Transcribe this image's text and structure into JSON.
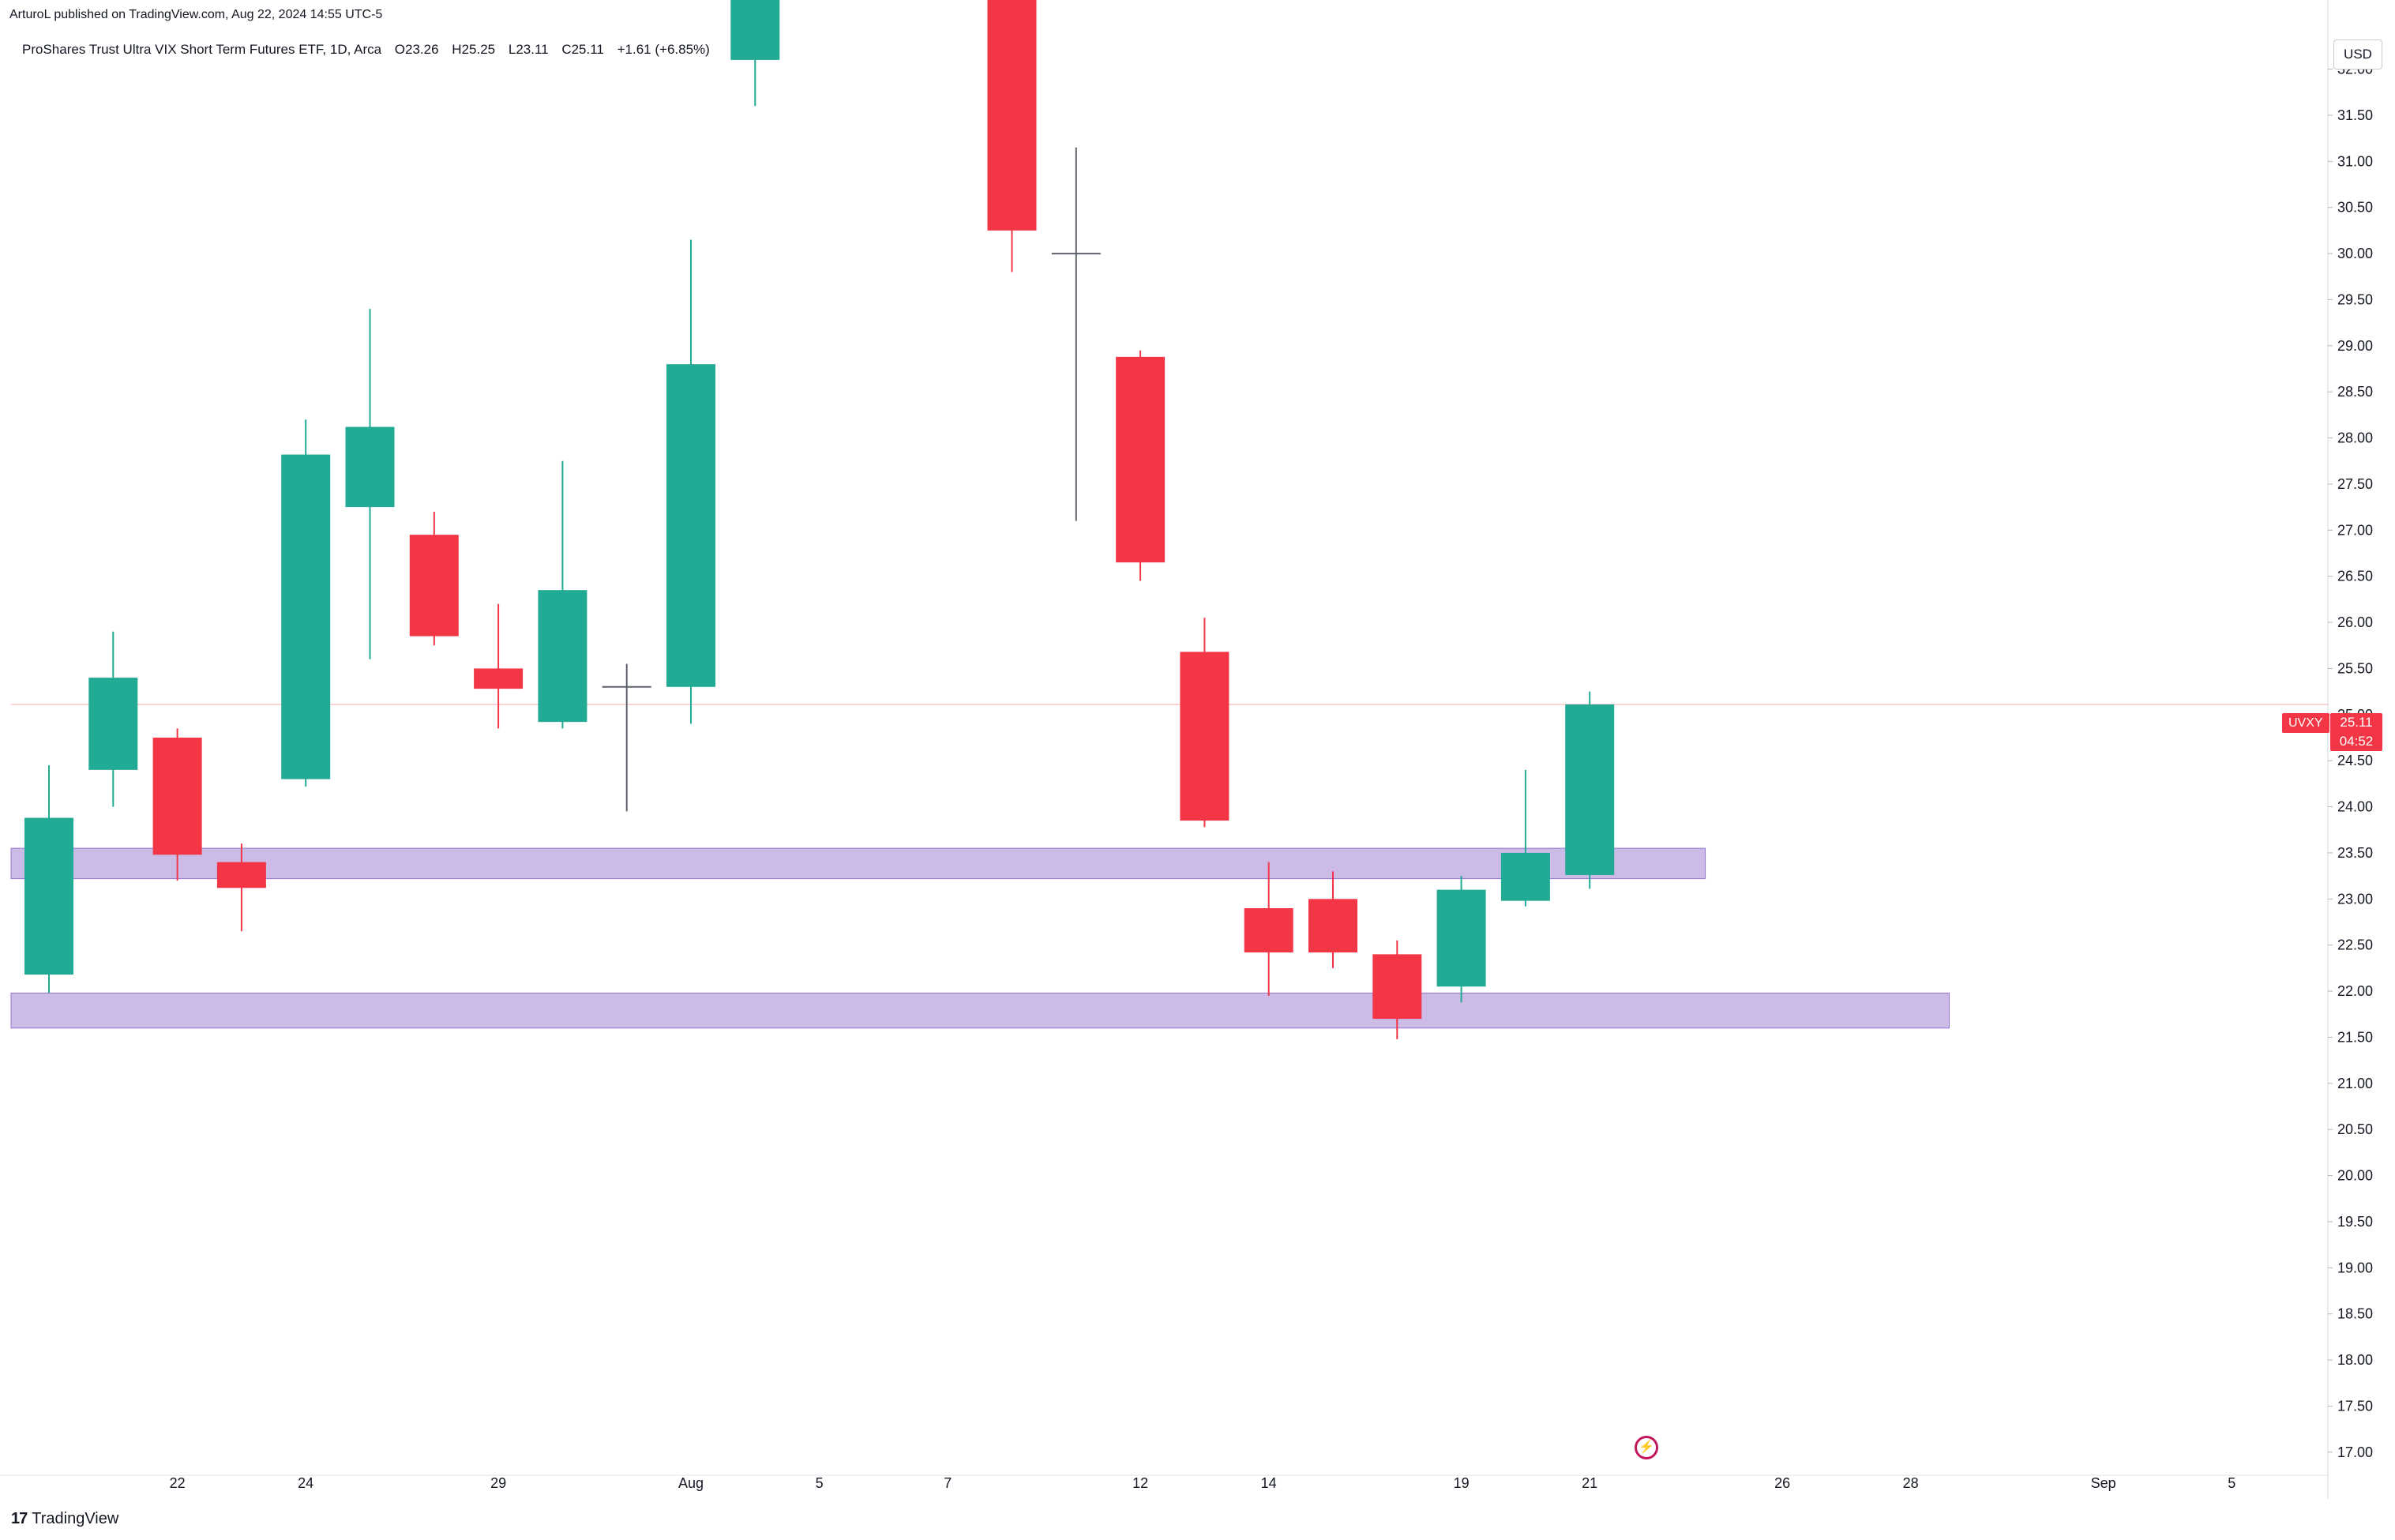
{
  "header": {
    "publisher": "ArturoL published on TradingView.com, Aug 22, 2024 14:55 UTC-5",
    "symbol_name": "ProShares Trust Ultra VIX Short Term Futures ETF, 1D, Arca",
    "open": "O23.26",
    "high": "H25.25",
    "low": "L23.11",
    "close": "C25.11",
    "change": "+1.61 (+6.85%)"
  },
  "price_scale": {
    "currency": "USD"
  },
  "last_price": {
    "symbol": "UVXY",
    "price": "25.11",
    "countdown": "04:52"
  },
  "footer": {
    "brand": "TradingView",
    "logo_text": "17"
  },
  "colors": {
    "up": "#22ab94",
    "down": "#f23645",
    "zone": "#c5b4e3",
    "zone_border": "#9575cd",
    "last_line": "#f7a8ae"
  },
  "chart_data": {
    "type": "candlestick",
    "ylim": [
      16.75,
      32.75
    ],
    "y_ticks": [
      17,
      17.5,
      18,
      18.5,
      19,
      19.5,
      20,
      20.5,
      21,
      21.5,
      22,
      22.5,
      23,
      23.5,
      24,
      24.5,
      25,
      25.5,
      26,
      26.5,
      27,
      27.5,
      28,
      28.5,
      29,
      29.5,
      30,
      30.5,
      31,
      31.5,
      32
    ],
    "x_ticks": [
      {
        "label": "22",
        "index": 2
      },
      {
        "label": "24",
        "index": 4
      },
      {
        "label": "29",
        "index": 7
      },
      {
        "label": "Aug",
        "index": 10
      },
      {
        "label": "5",
        "index": 12
      },
      {
        "label": "7",
        "index": 14
      },
      {
        "label": "12",
        "index": 17
      },
      {
        "label": "14",
        "index": 19
      },
      {
        "label": "19",
        "index": 22
      },
      {
        "label": "21",
        "index": 24
      },
      {
        "label": "26",
        "index": 27
      },
      {
        "label": "28",
        "index": 29
      },
      {
        "label": "Sep",
        "index": 32
      },
      {
        "label": "5",
        "index": 34
      }
    ],
    "candles": [
      {
        "i": 0,
        "o": 22.18,
        "h": 24.45,
        "l": 21.98,
        "c": 23.88
      },
      {
        "i": 1,
        "o": 24.4,
        "h": 25.9,
        "l": 24.0,
        "c": 25.4
      },
      {
        "i": 2,
        "o": 24.75,
        "h": 24.85,
        "l": 23.2,
        "c": 23.48
      },
      {
        "i": 3,
        "o": 23.4,
        "h": 23.6,
        "l": 22.65,
        "c": 23.12
      },
      {
        "i": 4,
        "o": 24.3,
        "h": 28.2,
        "l": 24.22,
        "c": 27.82
      },
      {
        "i": 5,
        "o": 27.25,
        "h": 29.4,
        "l": 25.6,
        "c": 28.12
      },
      {
        "i": 6,
        "o": 26.95,
        "h": 27.2,
        "l": 25.75,
        "c": 25.85
      },
      {
        "i": 7,
        "o": 25.5,
        "h": 26.2,
        "l": 24.85,
        "c": 25.28
      },
      {
        "i": 8,
        "o": 24.92,
        "h": 27.75,
        "l": 24.85,
        "c": 26.35
      },
      {
        "i": 9,
        "o": 25.28,
        "h": 25.55,
        "l": 23.95,
        "c": 25.3
      },
      {
        "i": 10,
        "o": 25.3,
        "h": 30.15,
        "l": 24.9,
        "c": 28.8
      },
      {
        "i": 11,
        "o": 32.1,
        "h": 33.5,
        "l": 31.6,
        "c": 33.2
      },
      {
        "i": 15,
        "o": 33.0,
        "h": 34.0,
        "l": 29.8,
        "c": 30.25
      },
      {
        "i": 16,
        "o": 30.0,
        "h": 31.15,
        "l": 27.1,
        "c": 30.0
      },
      {
        "i": 17,
        "o": 28.88,
        "h": 28.95,
        "l": 26.45,
        "c": 26.65
      },
      {
        "i": 18,
        "o": 25.68,
        "h": 26.05,
        "l": 23.78,
        "c": 23.85
      },
      {
        "i": 19,
        "o": 22.9,
        "h": 23.4,
        "l": 21.95,
        "c": 22.42
      },
      {
        "i": 20,
        "o": 23.0,
        "h": 23.3,
        "l": 22.25,
        "c": 22.42
      },
      {
        "i": 21,
        "o": 22.4,
        "h": 22.55,
        "l": 21.48,
        "c": 21.7
      },
      {
        "i": 22,
        "o": 22.05,
        "h": 23.25,
        "l": 21.88,
        "c": 23.1
      },
      {
        "i": 23,
        "o": 22.98,
        "h": 24.4,
        "l": 22.92,
        "c": 23.5
      },
      {
        "i": 24,
        "o": 23.26,
        "h": 25.25,
        "l": 23.11,
        "c": 25.11
      }
    ],
    "zones": [
      {
        "from_index": 0,
        "to_index": 25.8,
        "top": 23.55,
        "bottom": 23.22
      },
      {
        "from_index": 0,
        "to_index": 29.6,
        "top": 21.98,
        "bottom": 21.6
      }
    ],
    "last_price_line": 25.11
  }
}
